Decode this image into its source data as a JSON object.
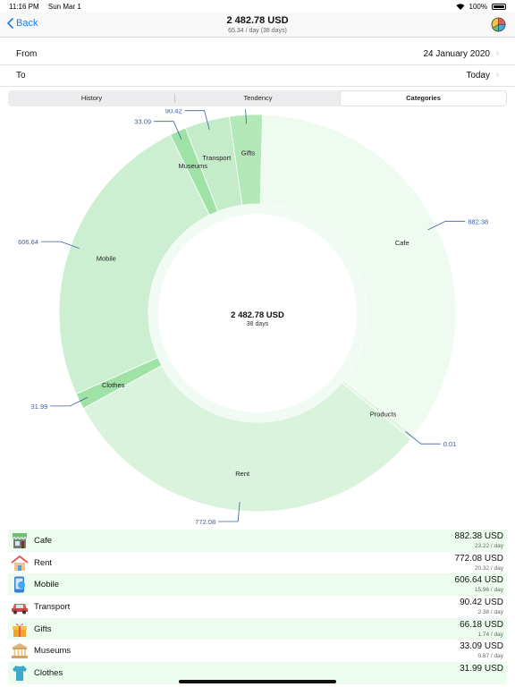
{
  "status": {
    "time": "11:16 PM",
    "date": "Sun Mar 1",
    "battery": "100%"
  },
  "nav": {
    "back_label": "Back",
    "title": "2 482.78 USD",
    "subtitle": "65.34 / day (38 days)"
  },
  "range": {
    "from_label": "From",
    "from_value": "24 January 2020",
    "to_label": "To",
    "to_value": "Today"
  },
  "tabs": [
    {
      "label": "History",
      "active": false
    },
    {
      "label": "Tendency",
      "active": false
    },
    {
      "label": "Categories",
      "active": true
    }
  ],
  "chart_data": {
    "type": "pie",
    "center_total": "2 482.78 USD",
    "center_days": "38 days",
    "slices": [
      {
        "label": "Cafe",
        "value": 882.38,
        "value_label": "882.38",
        "color": "#effaf0"
      },
      {
        "label": "Products",
        "value": 0.01,
        "value_label": "0.01",
        "color": "#e2f6e4"
      },
      {
        "label": "Rent",
        "value": 772.08,
        "value_label": "772.08",
        "color": "#daf3dc"
      },
      {
        "label": "Clothes",
        "value": 31.99,
        "value_label": "31.99",
        "color": "#9fe2a6"
      },
      {
        "label": "Mobile",
        "value": 606.64,
        "value_label": "606.64",
        "color": "#cdefd1"
      },
      {
        "label": "Museums",
        "value": 33.09,
        "value_label": "33.09",
        "color": "#9fe2a6"
      },
      {
        "label": "Transport",
        "value": 90.42,
        "value_label": "90.42",
        "color": "#c4ecc9"
      },
      {
        "label": "Gifts",
        "value": 66.18,
        "value_label": "66.18",
        "color": "#b3e8b9"
      }
    ]
  },
  "categories": [
    {
      "name": "Cafe",
      "amount": "882.38 USD",
      "per_day": "23.22 / day",
      "icon": "cafe-icon"
    },
    {
      "name": "Rent",
      "amount": "772.08 USD",
      "per_day": "20.32 / day",
      "icon": "house-icon"
    },
    {
      "name": "Mobile",
      "amount": "606.64 USD",
      "per_day": "15.96 / day",
      "icon": "mobile-icon"
    },
    {
      "name": "Transport",
      "amount": "90.42 USD",
      "per_day": "2.38 / day",
      "icon": "car-icon"
    },
    {
      "name": "Gifts",
      "amount": "66.18 USD",
      "per_day": "1.74 / day",
      "icon": "gift-icon"
    },
    {
      "name": "Museums",
      "amount": "33.09 USD",
      "per_day": "0.87 / day",
      "icon": "museum-icon"
    },
    {
      "name": "Clothes",
      "amount": "31.99 USD",
      "per_day": "",
      "icon": "clothes-icon"
    }
  ],
  "colors": {
    "accent": "#1a7cf5",
    "row_alt": "#ecfdf0",
    "value_label": "#3a5fa0"
  }
}
